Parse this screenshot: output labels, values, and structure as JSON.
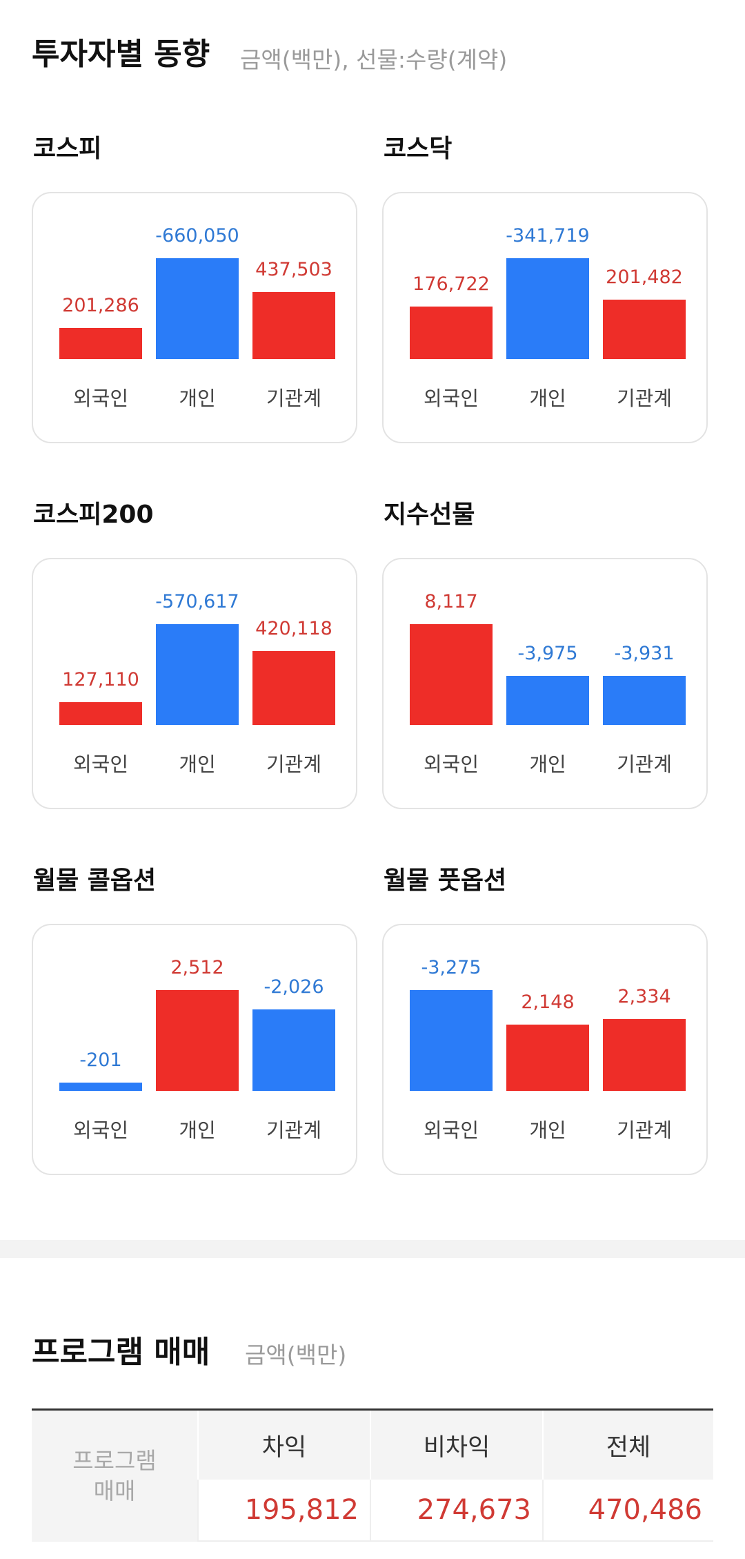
{
  "investor": {
    "title": "투자자별 동향",
    "subtitle": "금액(백만), 선물:수량(계약)",
    "labels": [
      "외국인",
      "개인",
      "기관계"
    ],
    "cards": [
      {
        "name": "코스피",
        "values": [
          201286,
          -660050,
          437503
        ],
        "display": [
          "201,286",
          "-660,050",
          "437,503"
        ]
      },
      {
        "name": "코스닥",
        "values": [
          176722,
          -341719,
          201482
        ],
        "display": [
          "176,722",
          "-341,719",
          "201,482"
        ]
      },
      {
        "name": "코스피200",
        "values": [
          127110,
          -570617,
          420118
        ],
        "display": [
          "127,110",
          "-570,617",
          "420,118"
        ]
      },
      {
        "name": "지수선물",
        "values": [
          8117,
          -3975,
          -3931
        ],
        "display": [
          "8,117",
          "-3,975",
          "-3,931"
        ]
      },
      {
        "name": "월물 콜옵션",
        "values": [
          -201,
          2512,
          -2026
        ],
        "display": [
          "-201",
          "2,512",
          "-2,026"
        ]
      },
      {
        "name": "월물 풋옵션",
        "values": [
          -3275,
          2148,
          2334
        ],
        "display": [
          "-3,275",
          "2,148",
          "2,334"
        ]
      }
    ]
  },
  "program": {
    "title": "프로그램 매매",
    "subtitle": "금액(백만)",
    "side_label_1": "프로그램",
    "side_label_2": "매매",
    "headers": [
      "차익",
      "비차익",
      "전체"
    ],
    "values": [
      "195,812",
      "274,673",
      "470,486"
    ]
  },
  "colors": {
    "positive": "#ee2d28",
    "negative": "#2a7cf8",
    "positive_text": "#d03a34",
    "negative_text": "#2f79d4"
  }
}
